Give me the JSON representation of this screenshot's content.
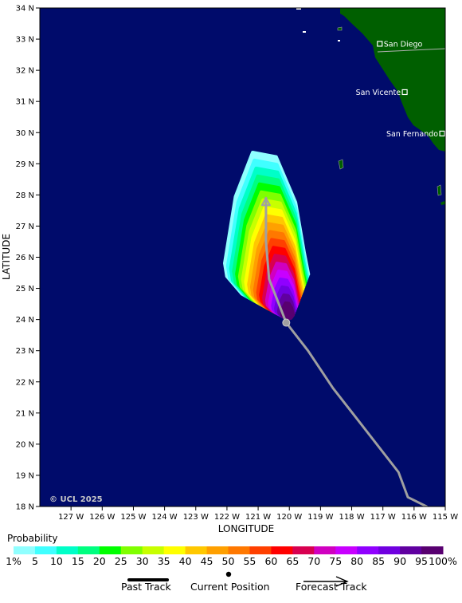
{
  "map": {
    "credit": "© UCL 2025",
    "y_axis_title": "LATITUDE",
    "x_axis_title": "LONGITUDE",
    "lat_labels": [
      "34 N",
      "33 N",
      "32 N",
      "31 N",
      "30 N",
      "29 N",
      "28 N",
      "27 N",
      "26 N",
      "25 N",
      "24 N",
      "23 N",
      "22 N",
      "21 N",
      "20 N",
      "19 N",
      "18 N"
    ],
    "lon_labels": [
      "127 W",
      "126 W",
      "125 W",
      "124 W",
      "123 W",
      "122 W",
      "121 W",
      "120 W",
      "119 W",
      "118 W",
      "117 W",
      "116 W",
      "115 W"
    ],
    "lat_range": [
      18,
      34
    ],
    "lon_range": [
      -128,
      -115
    ],
    "ocean_color": "#000b6b",
    "land_color": "#005f00",
    "cities": [
      {
        "name": "San Diego",
        "lon": -117.1,
        "lat": 32.85,
        "label_side": "right"
      },
      {
        "name": "San Vicente",
        "lon": -116.3,
        "lat": 31.3,
        "label_side": "left"
      },
      {
        "name": "San Fernando",
        "lon": -115.1,
        "lat": 29.97,
        "label_side": "left"
      }
    ],
    "track": [
      {
        "lon": -115.6,
        "lat": 18.0
      },
      {
        "lon": -116.2,
        "lat": 18.3
      },
      {
        "lon": -116.5,
        "lat": 19.1
      },
      {
        "lon": -117.9,
        "lat": 20.9
      },
      {
        "lon": -118.6,
        "lat": 21.8
      },
      {
        "lon": -119.4,
        "lat": 23.0
      },
      {
        "lon": -120.1,
        "lat": 23.9
      },
      {
        "lon": -120.65,
        "lat": 25.3
      },
      {
        "lon": -120.75,
        "lat": 26.5
      },
      {
        "lon": -120.75,
        "lat": 27.9
      }
    ],
    "current_position": {
      "lon": -120.1,
      "lat": 23.9
    },
    "track_color": "#a0a0a0"
  },
  "legend": {
    "title": "Probability",
    "colors": [
      "#90ffff",
      "#40ffff",
      "#00ffc8",
      "#00ff80",
      "#00ff00",
      "#80ff00",
      "#c8ff00",
      "#ffff00",
      "#ffc800",
      "#ffa000",
      "#ff7800",
      "#ff4000",
      "#ff0000",
      "#d80050",
      "#d000c0",
      "#c800ff",
      "#9000ff",
      "#7000e0",
      "#6000a0",
      "#580070"
    ],
    "labels": [
      "1%",
      "5",
      "10",
      "15",
      "20",
      "25",
      "30",
      "35",
      "40",
      "45",
      "50",
      "55",
      "60",
      "65",
      "70",
      "75",
      "80",
      "85",
      "90",
      "95",
      "100%"
    ],
    "past_track": "Past Track",
    "current_position": "Current Position",
    "forecast_track": "Forecast Track"
  }
}
